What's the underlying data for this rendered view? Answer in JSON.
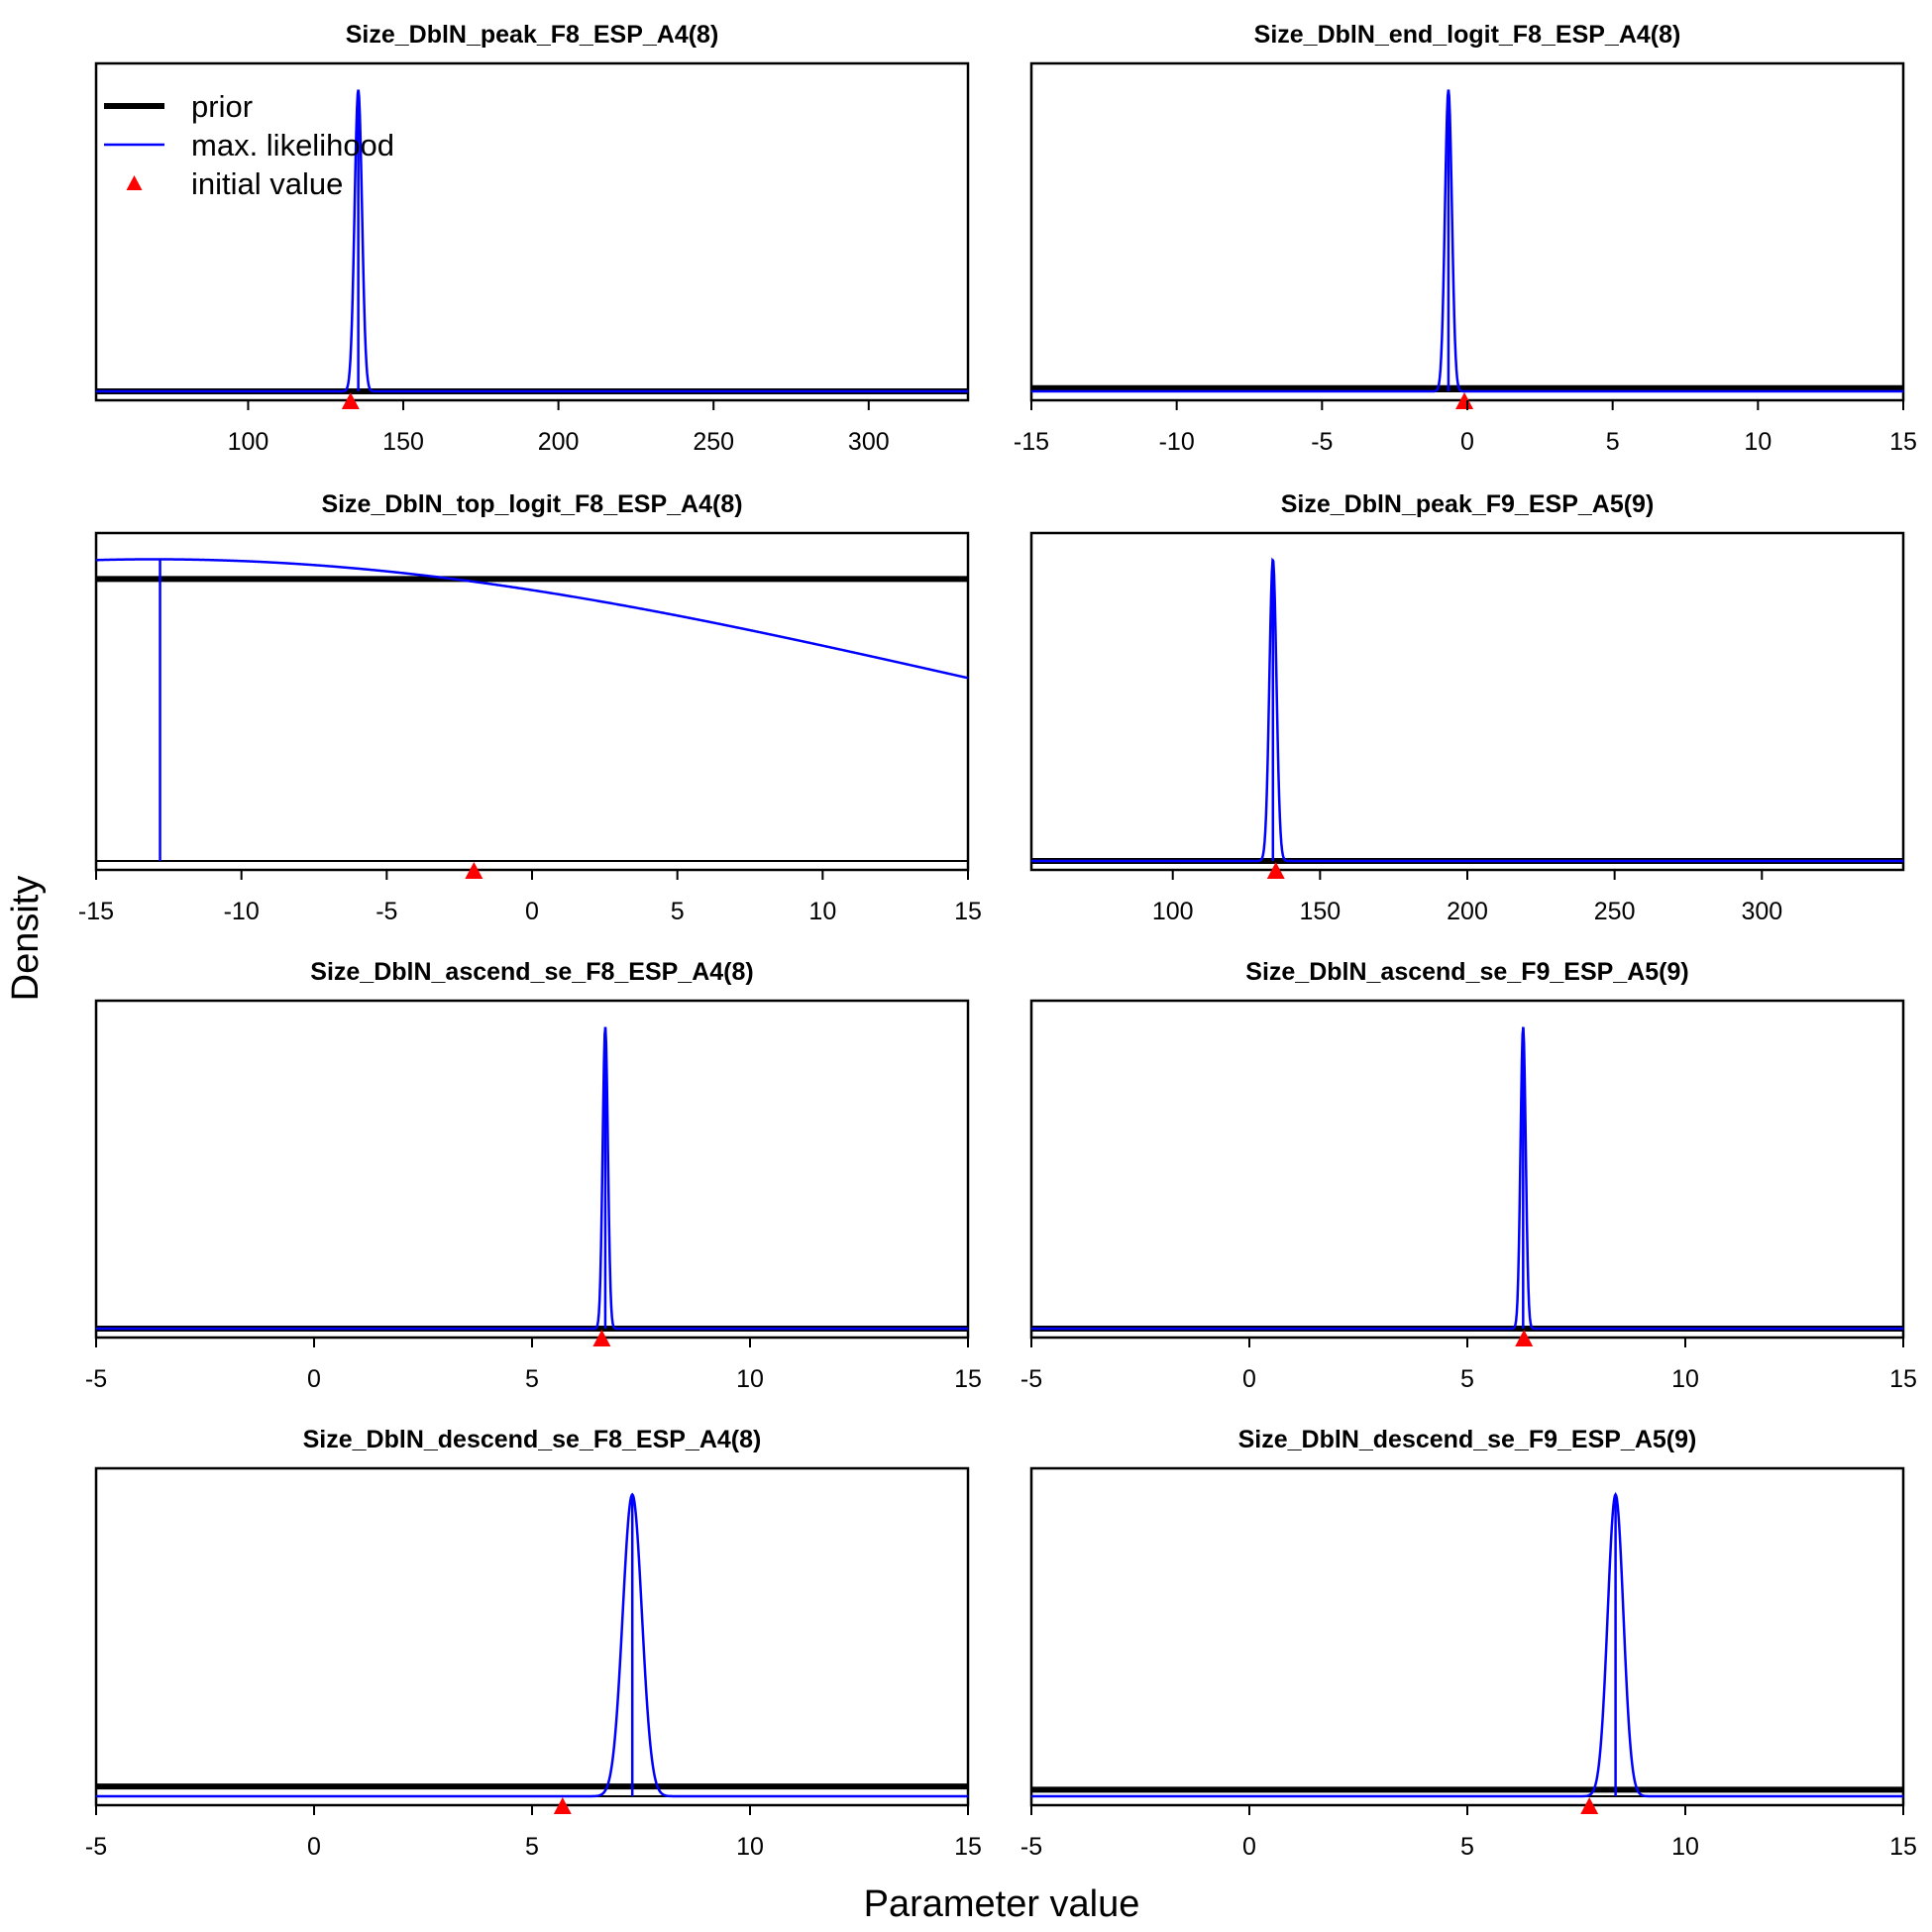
{
  "figure": {
    "ylabel": "Density",
    "xlabel": "Parameter value",
    "legend": {
      "placement": "top-left of first panel",
      "items": [
        {
          "label": "prior",
          "color": "#000000",
          "kind": "thick-line"
        },
        {
          "label": "max. likelihood",
          "color": "#0000ff",
          "kind": "line"
        },
        {
          "label": "initial value",
          "color": "#ff0000",
          "kind": "triangle"
        }
      ]
    }
  },
  "chart_data": [
    {
      "type": "line",
      "title": "Size_DblN_peak_F8_ESP_A4(8)",
      "xlim": [
        51,
        332
      ],
      "xticks": [
        100,
        150,
        200,
        250,
        300
      ],
      "prior_level": 0.0,
      "mle": {
        "mean": 135.5,
        "sd": 1.2,
        "peak": 0.92
      },
      "mle_vline": 135.5,
      "initial_value": 133,
      "colors": {
        "prior": "#000000",
        "mle": "#0000ff",
        "initial": "#ff0000"
      }
    },
    {
      "type": "line",
      "title": "Size_DblN_end_logit_F8_ESP_A4(8)",
      "xlim": [
        -15,
        15
      ],
      "xticks": [
        -15,
        -10,
        -5,
        0,
        5,
        10,
        15
      ],
      "prior_level": 0.01,
      "mle": {
        "mean": -0.65,
        "sd": 0.12,
        "peak": 0.92
      },
      "mle_vline": -0.65,
      "initial_value": -0.1,
      "colors": {
        "prior": "#000000",
        "mle": "#0000ff",
        "initial": "#ff0000"
      }
    },
    {
      "type": "line",
      "title": "Size_DblN_top_logit_F8_ESP_A4(8)",
      "xlim": [
        -15,
        15
      ],
      "xticks": [
        -15,
        -10,
        -5,
        0,
        5,
        10,
        15
      ],
      "prior_level": 0.86,
      "mle": {
        "mean": -13,
        "sd": 28,
        "peak": 0.92
      },
      "mle_vline": -12.8,
      "initial_value": -2,
      "colors": {
        "prior": "#000000",
        "mle": "#0000ff",
        "initial": "#ff0000"
      }
    },
    {
      "type": "line",
      "title": "Size_DblN_peak_F9_ESP_A5(9)",
      "xlim": [
        52,
        348
      ],
      "xticks": [
        100,
        150,
        200,
        250,
        300
      ],
      "prior_level": 0.0,
      "mle": {
        "mean": 134,
        "sd": 1.2,
        "peak": 0.92
      },
      "mle_vline": 134,
      "initial_value": 135,
      "colors": {
        "prior": "#000000",
        "mle": "#0000ff",
        "initial": "#ff0000"
      }
    },
    {
      "type": "line",
      "title": "Size_DblN_ascend_se_F8_ESP_A4(8)",
      "xlim": [
        -5,
        15
      ],
      "xticks": [
        -5,
        0,
        5,
        10,
        15
      ],
      "prior_level": 0.0,
      "mle": {
        "mean": 6.68,
        "sd": 0.06,
        "peak": 0.92
      },
      "mle_vline": 6.68,
      "initial_value": 6.6,
      "colors": {
        "prior": "#000000",
        "mle": "#0000ff",
        "initial": "#ff0000"
      }
    },
    {
      "type": "line",
      "title": "Size_DblN_ascend_se_F9_ESP_A5(9)",
      "xlim": [
        -5,
        15
      ],
      "xticks": [
        -5,
        0,
        5,
        10,
        15
      ],
      "prior_level": 0.0,
      "mle": {
        "mean": 6.28,
        "sd": 0.06,
        "peak": 0.92
      },
      "mle_vline": 6.28,
      "initial_value": 6.3,
      "colors": {
        "prior": "#000000",
        "mle": "#0000ff",
        "initial": "#ff0000"
      }
    },
    {
      "type": "line",
      "title": "Size_DblN_descend_se_F8_ESP_A4(8)",
      "xlim": [
        -5,
        15
      ],
      "xticks": [
        -5,
        0,
        5,
        10,
        15
      ],
      "prior_level": 0.03,
      "mle": {
        "mean": 7.3,
        "sd": 0.22,
        "peak": 0.92
      },
      "mle_vline": 7.3,
      "initial_value": 5.7,
      "colors": {
        "prior": "#000000",
        "mle": "#0000ff",
        "initial": "#ff0000"
      }
    },
    {
      "type": "line",
      "title": "Size_DblN_descend_se_F9_ESP_A5(9)",
      "xlim": [
        -5,
        15
      ],
      "xticks": [
        -5,
        0,
        5,
        10,
        15
      ],
      "prior_level": 0.02,
      "mle": {
        "mean": 8.4,
        "sd": 0.18,
        "peak": 0.92
      },
      "mle_vline": 8.4,
      "initial_value": 7.8,
      "colors": {
        "prior": "#000000",
        "mle": "#0000ff",
        "initial": "#ff0000"
      }
    }
  ]
}
